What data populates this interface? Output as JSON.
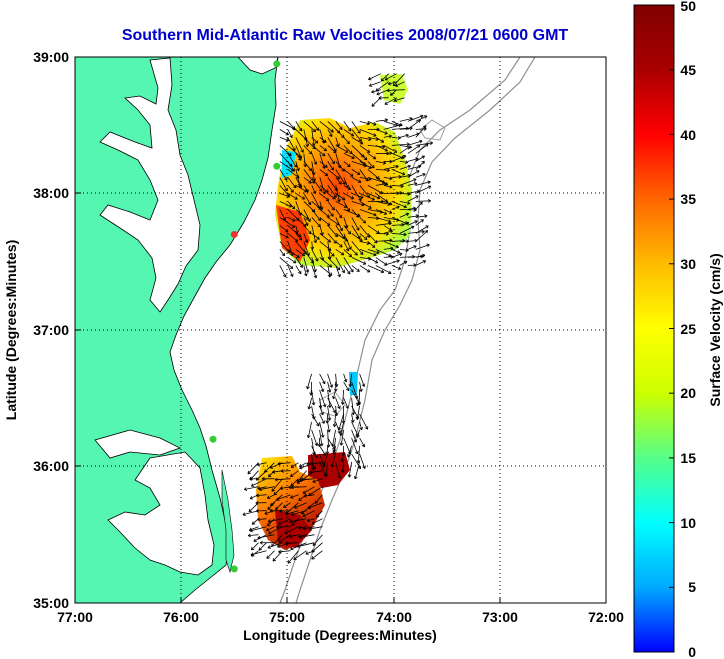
{
  "title": "Southern Mid-Atlantic Raw Velocities 2008/07/21 0600 GMT",
  "x_axis": {
    "label": "Longitude (Degrees:Minutes)",
    "ticks": [
      {
        "value": -77,
        "label": "77:00"
      },
      {
        "value": -76,
        "label": "76:00"
      },
      {
        "value": -75,
        "label": "75:00"
      },
      {
        "value": -74,
        "label": "74:00"
      },
      {
        "value": -73,
        "label": "73:00"
      },
      {
        "value": -72,
        "label": "72:00"
      }
    ],
    "range": [
      -77,
      -72
    ]
  },
  "y_axis": {
    "label": "Latitude (Degrees:Minutes)",
    "ticks": [
      {
        "value": 39,
        "label": "39:00"
      },
      {
        "value": 38,
        "label": "38:00"
      },
      {
        "value": 37,
        "label": "37:00"
      },
      {
        "value": 36,
        "label": "36:00"
      },
      {
        "value": 35,
        "label": "35:00"
      }
    ],
    "range": [
      35,
      39
    ]
  },
  "colorbar": {
    "label": "Surface Velocity (cm/s)",
    "ticks": [
      "0",
      "5",
      "10",
      "15",
      "20",
      "25",
      "30",
      "35",
      "40",
      "45",
      "50"
    ],
    "range": [
      0,
      50
    ],
    "colormap": [
      "#0000ff",
      "#00aaff",
      "#00ffff",
      "#55ff88",
      "#ccff00",
      "#ffff00",
      "#ffbb00",
      "#ff6600",
      "#ff0000",
      "#aa0000",
      "#7f0000"
    ]
  },
  "colors": {
    "land": "#55f5b2",
    "title": "#0000cc",
    "station": "#33cc33",
    "station_alt": "#ee3333",
    "grid": "#000000",
    "isobath": "#909090"
  },
  "grid": "dotted",
  "stations": [
    {
      "lon": -75.1,
      "lat": 38.95,
      "color": "#33cc33"
    },
    {
      "lon": -75.1,
      "lat": 38.2,
      "color": "#33cc33"
    },
    {
      "lon": -75.5,
      "lat": 37.7,
      "color": "#ee3333"
    },
    {
      "lon": -75.7,
      "lat": 36.2,
      "color": "#33cc33"
    },
    {
      "lon": -75.5,
      "lat": 35.25,
      "color": "#33cc33"
    }
  ],
  "velocity_regions": [
    {
      "name": "north",
      "lon_range": [
        -74.15,
        -73.85
      ],
      "lat_range": [
        38.7,
        38.9
      ],
      "speeds": [
        15,
        25
      ]
    },
    {
      "name": "main",
      "lon_range": [
        -75.1,
        -73.75
      ],
      "lat_range": [
        37.45,
        38.55
      ],
      "speeds": [
        15,
        50
      ]
    },
    {
      "name": "mid",
      "lon_range": [
        -74.8,
        -74.3
      ],
      "lat_range": [
        36.0,
        36.7
      ],
      "speeds": [
        45,
        50
      ]
    },
    {
      "name": "south",
      "lon_range": [
        -75.3,
        -74.6
      ],
      "lat_range": [
        35.35,
        36.05
      ],
      "speeds": [
        20,
        50
      ]
    }
  ]
}
